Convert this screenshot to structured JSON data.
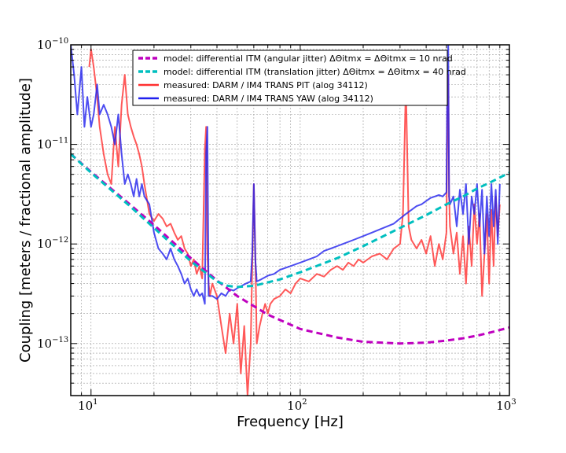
{
  "chart_data": {
    "type": "line",
    "xlabel": "Frequency [Hz]",
    "ylabel": "Coupling [meters / fractional amplitude]",
    "xscale": "log",
    "yscale": "log",
    "xlim": [
      8,
      1000
    ],
    "ylim": [
      3e-14,
      1e-10
    ],
    "grid": true,
    "legend_position": "top",
    "x_ticks": [
      {
        "value": 10,
        "base": "10",
        "exp": "1"
      },
      {
        "value": 100,
        "base": "10",
        "exp": "2"
      },
      {
        "value": 1000,
        "base": "10",
        "exp": "3"
      }
    ],
    "y_ticks": [
      {
        "value": 1e-10,
        "base": "10",
        "exp": "−10"
      },
      {
        "value": 1e-11,
        "base": "10",
        "exp": "−11"
      },
      {
        "value": 1e-12,
        "base": "10",
        "exp": "−12"
      },
      {
        "value": 1e-13,
        "base": "10",
        "exp": "−13"
      }
    ],
    "series": [
      {
        "name": "model: differential ITM (angular jitter) ΔΘitmx = ΔΘitmx = 10 nrad",
        "color": "#bf00bf",
        "dash": "8,5",
        "width": 3,
        "x": [
          8,
          10,
          15,
          20,
          30,
          40,
          50,
          70,
          100,
          150,
          200,
          300,
          400,
          500,
          600,
          700,
          800,
          1000
        ],
        "y": [
          8e-12,
          5.3e-12,
          2.6e-12,
          1.55e-12,
          7.2e-13,
          4.3e-13,
          3e-13,
          1.95e-13,
          1.4e-13,
          1.15e-13,
          1.04e-13,
          1e-13,
          1.02e-13,
          1.07e-13,
          1.13e-13,
          1.2e-13,
          1.28e-13,
          1.45e-13
        ]
      },
      {
        "name": "model: differential ITM (translation jitter) ΔΘitmx = ΔΘitmx = 40 nrad",
        "color": "#00bfbf",
        "dash": "8,5",
        "width": 3,
        "x": [
          8,
          10,
          15,
          20,
          30,
          40,
          45,
          50,
          60,
          80,
          100,
          150,
          200,
          300,
          400,
          500,
          600,
          700,
          800,
          1000
        ],
        "y": [
          8e-12,
          5.2e-12,
          2.5e-12,
          1.45e-12,
          6.7e-13,
          4.2e-13,
          3.8e-13,
          3.7e-13,
          3.8e-13,
          4.4e-13,
          5.2e-13,
          7.2e-13,
          9.5e-13,
          1.45e-12,
          1.95e-12,
          2.5e-12,
          3e-12,
          3.6e-12,
          4.1e-12,
          5.2e-12
        ]
      },
      {
        "name": "measured: DARM / IM4 TRANS PIT (alog 34112)",
        "color": "#ff3030",
        "width": 2,
        "x": [
          9.8,
          10,
          10.3,
          10.7,
          11,
          11.5,
          12,
          12.5,
          13,
          13.5,
          14,
          14.5,
          15,
          15.5,
          16,
          16.5,
          17,
          17.5,
          18,
          19,
          20,
          21,
          22,
          23,
          24,
          25,
          26,
          27,
          28,
          29,
          30,
          31,
          32,
          33,
          34,
          35,
          35.5,
          36,
          36.5,
          37,
          38,
          40,
          42,
          44,
          46,
          48,
          50,
          52,
          54,
          56,
          58,
          59,
          60,
          61,
          62,
          64,
          66,
          68,
          70,
          72,
          75,
          80,
          85,
          90,
          95,
          100,
          110,
          120,
          130,
          140,
          150,
          160,
          170,
          180,
          190,
          200,
          220,
          240,
          260,
          280,
          300,
          310,
          320,
          330,
          340,
          360,
          380,
          400,
          420,
          440,
          460,
          480,
          500,
          505,
          510,
          515,
          520,
          540,
          560,
          580,
          600,
          620,
          640,
          660,
          680,
          700,
          720,
          740,
          760,
          780,
          800,
          820,
          840,
          860,
          880,
          900
        ],
        "y": [
          6e-11,
          9e-11,
          6e-11,
          3e-11,
          1.5e-11,
          8e-12,
          5e-12,
          4e-12,
          1.5e-11,
          6e-12,
          2.5e-11,
          5e-11,
          2e-11,
          1.5e-11,
          1.2e-11,
          1e-11,
          8e-12,
          6e-12,
          4e-12,
          2e-12,
          1.7e-12,
          2e-12,
          1.8e-12,
          1.5e-12,
          1.6e-12,
          1.3e-12,
          1.1e-12,
          1.2e-12,
          9e-13,
          8e-13,
          6e-13,
          7e-13,
          5e-13,
          6e-13,
          4.5e-13,
          9e-12,
          1.5e-11,
          8e-13,
          4e-13,
          3e-13,
          4e-13,
          3e-13,
          1.5e-13,
          8e-14,
          2e-13,
          1e-13,
          2.5e-13,
          5e-14,
          1.5e-13,
          3e-14,
          1e-13,
          6e-13,
          4e-12,
          8e-13,
          1e-13,
          1.5e-13,
          2e-13,
          2.5e-13,
          2e-13,
          2.5e-13,
          2.8e-13,
          3e-13,
          3.5e-13,
          3.2e-13,
          4e-13,
          4.5e-13,
          4.2e-13,
          5e-13,
          4.7e-13,
          5.5e-13,
          6e-13,
          5.5e-13,
          6.5e-13,
          6e-13,
          7e-13,
          6.5e-13,
          7.5e-13,
          8e-13,
          7e-13,
          9e-13,
          1e-12,
          2e-12,
          4e-11,
          1.5e-12,
          1.1e-12,
          9e-13,
          1.1e-12,
          8e-13,
          1.2e-12,
          6e-13,
          1e-12,
          7e-13,
          1.3e-12,
          2e-11,
          5e-11,
          3e-12,
          1.5e-12,
          8e-13,
          1.3e-12,
          5e-13,
          1.2e-12,
          4e-13,
          1.5e-12,
          6e-13,
          2.5e-12,
          1e-12,
          2e-12,
          3e-13,
          8e-13,
          2e-12,
          4e-13,
          2.2e-12,
          6e-13,
          3e-12,
          1.2e-12,
          2.5e-12
        ]
      },
      {
        "name": "measured: DARM / IM4 TRANS YAW (alog 34112)",
        "color": "#2020ee",
        "width": 2,
        "x": [
          8,
          8.3,
          8.6,
          9,
          9.3,
          9.6,
          10,
          10.3,
          10.7,
          11,
          11.5,
          12,
          12.5,
          13,
          13.5,
          14,
          14.5,
          15,
          15.5,
          16,
          16.5,
          17,
          17.5,
          18,
          19,
          20,
          21,
          22,
          23,
          24,
          25,
          26,
          27,
          28,
          29,
          30,
          31,
          32,
          33,
          34,
          35,
          35.5,
          36,
          36.5,
          37,
          38,
          40,
          42,
          44,
          46,
          48,
          50,
          55,
          58,
          59,
          60,
          61,
          62,
          65,
          70,
          75,
          80,
          90,
          100,
          110,
          120,
          130,
          140,
          150,
          160,
          180,
          200,
          220,
          240,
          260,
          280,
          300,
          320,
          340,
          360,
          380,
          400,
          420,
          440,
          460,
          480,
          500,
          505,
          510,
          515,
          520,
          540,
          560,
          580,
          600,
          620,
          640,
          660,
          680,
          700,
          720,
          740,
          760,
          780,
          800,
          820,
          840,
          860,
          880,
          900
        ],
        "y": [
          1e-10,
          5e-11,
          2e-11,
          6e-11,
          1.5e-11,
          3e-11,
          1.5e-11,
          2e-11,
          4e-11,
          2e-11,
          2.5e-11,
          2e-11,
          1.5e-11,
          1e-11,
          2e-11,
          8e-12,
          4e-12,
          5e-12,
          4e-12,
          3e-12,
          4.5e-12,
          3e-12,
          4e-12,
          3e-12,
          2.5e-12,
          1.3e-12,
          9e-13,
          8e-13,
          7e-13,
          9e-13,
          7e-13,
          6e-13,
          5e-13,
          4e-13,
          4.5e-13,
          3.5e-13,
          3e-13,
          3.5e-13,
          3e-13,
          3.2e-13,
          2.5e-13,
          8e-12,
          1.5e-11,
          3e-13,
          3e-13,
          3e-13,
          2.8e-13,
          3.2e-13,
          3e-13,
          3.5e-13,
          3.4e-13,
          3.6e-13,
          4e-13,
          4.2e-13,
          8e-13,
          4e-12,
          7e-13,
          4.2e-13,
          4.4e-13,
          4.8e-13,
          5e-13,
          5.5e-13,
          6e-13,
          6.5e-13,
          7e-13,
          7.5e-13,
          8.5e-13,
          9e-13,
          9.5e-13,
          1e-12,
          1.1e-12,
          1.2e-12,
          1.3e-12,
          1.4e-12,
          1.5e-12,
          1.6e-12,
          1.8e-12,
          2e-12,
          2.2e-12,
          2.4e-12,
          2.5e-12,
          2.7e-12,
          2.9e-12,
          3e-12,
          3.1e-12,
          3e-12,
          3.3e-12,
          4e-11,
          1e-10,
          3e-12,
          2.5e-12,
          3e-12,
          1.5e-12,
          3.5e-12,
          2e-12,
          4e-12,
          1e-12,
          3e-12,
          2e-12,
          4e-12,
          1.5e-12,
          3.5e-12,
          8e-13,
          3e-12,
          1.2e-12,
          4e-12,
          1.5e-12,
          3.5e-12,
          1e-12,
          4e-12
        ]
      }
    ]
  }
}
